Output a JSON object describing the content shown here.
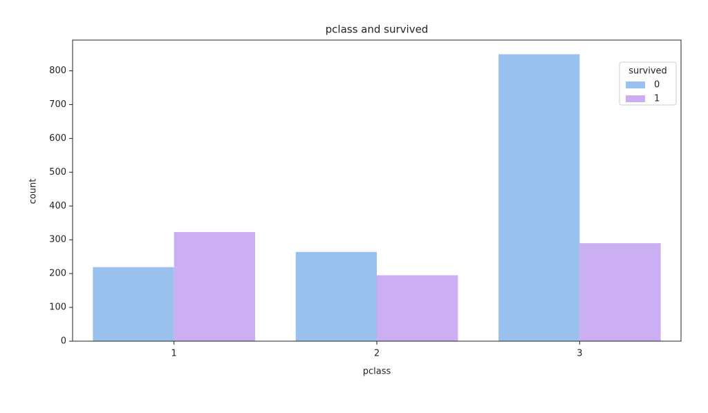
{
  "chart_data": {
    "type": "bar",
    "title": "pclass and survived",
    "xlabel": "pclass",
    "ylabel": "count",
    "categories": [
      "1",
      "2",
      "3"
    ],
    "series": [
      {
        "name": "0",
        "color": "#9ac0ee",
        "values": [
          219,
          264,
          849
        ]
      },
      {
        "name": "1",
        "color": "#cbaff2",
        "values": [
          323,
          195,
          290
        ]
      }
    ],
    "legend_title": "survived",
    "legend": "upper right",
    "ylim": [
      0,
      891
    ],
    "yticks": [
      0,
      100,
      200,
      300,
      400,
      500,
      600,
      700,
      800
    ],
    "grid": false
  }
}
